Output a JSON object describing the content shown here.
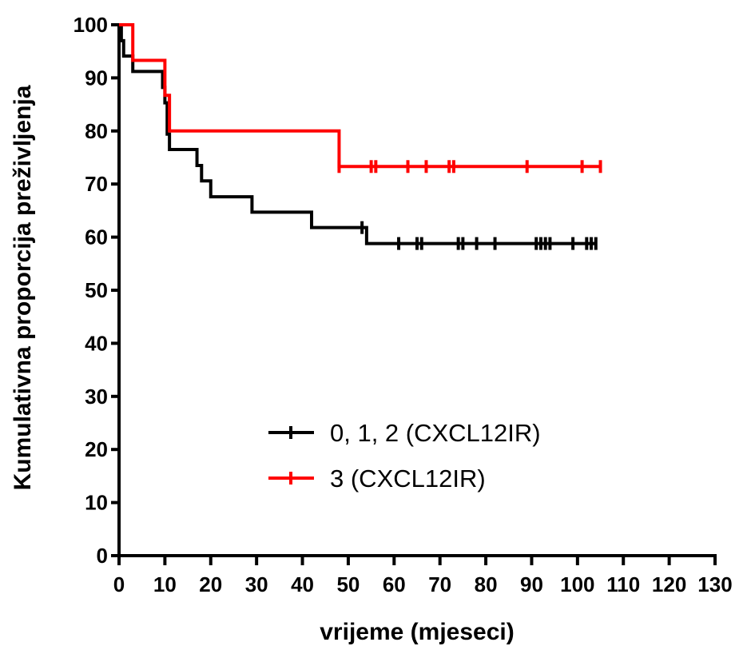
{
  "chart_data": {
    "type": "line",
    "subtype": "kaplan-meier",
    "title": "",
    "xlabel": "vrijeme (mjeseci)",
    "ylabel": "Kumulativna proporcija preživljenja",
    "xlim": [
      0,
      130
    ],
    "ylim": [
      0,
      100
    ],
    "x_ticks": [
      0,
      10,
      20,
      30,
      40,
      50,
      60,
      70,
      80,
      90,
      100,
      110,
      120,
      130
    ],
    "x_tick_labels": [
      "0",
      "10",
      "20",
      "30",
      "40",
      "50",
      "60",
      "70",
      "80",
      "90",
      "100",
      "110",
      "120",
      "130"
    ],
    "y_ticks": [
      0,
      10,
      20,
      30,
      40,
      50,
      60,
      70,
      80,
      90,
      100
    ],
    "y_tick_labels": [
      "0",
      "10",
      "20",
      "30",
      "40",
      "50",
      "60",
      "70",
      "80",
      "90",
      "100"
    ],
    "grid": false,
    "legend_position": "center-right",
    "series": [
      {
        "name": "0, 1, 2 (CXCL12IR)",
        "color": "#000000",
        "steps": [
          [
            0,
            100
          ],
          [
            0.5,
            97
          ],
          [
            1,
            94.1
          ],
          [
            3,
            91.2
          ],
          [
            9.5,
            88.2
          ],
          [
            10,
            85.3
          ],
          [
            10.5,
            79.4
          ],
          [
            11,
            76.5
          ],
          [
            17,
            73.5
          ],
          [
            18,
            70.6
          ],
          [
            20,
            67.6
          ],
          [
            29,
            64.7
          ],
          [
            42,
            61.8
          ],
          [
            54,
            58.8
          ],
          [
            104,
            58.8
          ]
        ],
        "censored": [
          53,
          61,
          65,
          66,
          74,
          75,
          78,
          82,
          91,
          92,
          93,
          94,
          99,
          102,
          103,
          104
        ]
      },
      {
        "name": "3 (CXCL12IR)",
        "color": "#ff0000",
        "steps": [
          [
            0,
            100
          ],
          [
            3,
            93.3
          ],
          [
            10,
            86.7
          ],
          [
            11,
            80
          ],
          [
            48,
            73.3
          ],
          [
            105,
            73.3
          ]
        ],
        "censored": [
          48,
          55,
          56,
          63,
          67,
          72,
          73,
          89,
          101,
          105
        ]
      }
    ]
  }
}
